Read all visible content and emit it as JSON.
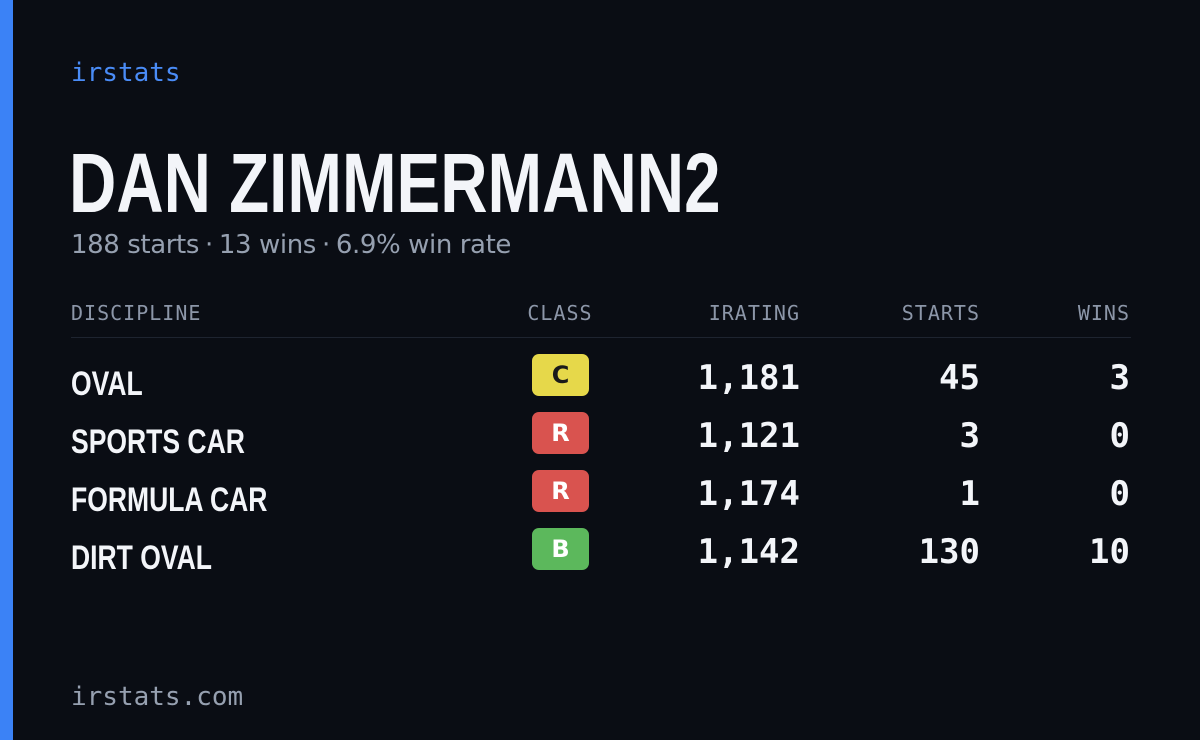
{
  "brand": "irstats",
  "player": {
    "name": "DAN ZIMMERMANN2"
  },
  "summary": {
    "starts": "188 starts",
    "wins": "13 wins",
    "win_rate": "6.9% win rate",
    "separator": "·"
  },
  "table": {
    "headers": {
      "discipline": "DISCIPLINE",
      "class": "CLASS",
      "irating": "IRATING",
      "starts": "STARTS",
      "wins": "WINS"
    },
    "rows": [
      {
        "discipline": "OVAL",
        "class": "C",
        "class_color": "#e6d84a",
        "class_text_color": "#1a1a1a",
        "irating": "1,181",
        "starts": "45",
        "wins": "3"
      },
      {
        "discipline": "SPORTS CAR",
        "class": "R",
        "class_color": "#d9534f",
        "class_text_color": "#ffffff",
        "irating": "1,121",
        "starts": "3",
        "wins": "0"
      },
      {
        "discipline": "FORMULA CAR",
        "class": "R",
        "class_color": "#d9534f",
        "class_text_color": "#ffffff",
        "irating": "1,174",
        "starts": "1",
        "wins": "0"
      },
      {
        "discipline": "DIRT OVAL",
        "class": "B",
        "class_color": "#5cb85c",
        "class_text_color": "#ffffff",
        "irating": "1,142",
        "starts": "130",
        "wins": "10"
      }
    ]
  },
  "footer": {
    "url": "irstats.com"
  },
  "colors": {
    "background": "#0a0d14",
    "accent": "#3b82f6",
    "brand_text": "#4a8cf7",
    "primary_text": "#f3f5f9",
    "muted_text": "#96a0b0"
  }
}
